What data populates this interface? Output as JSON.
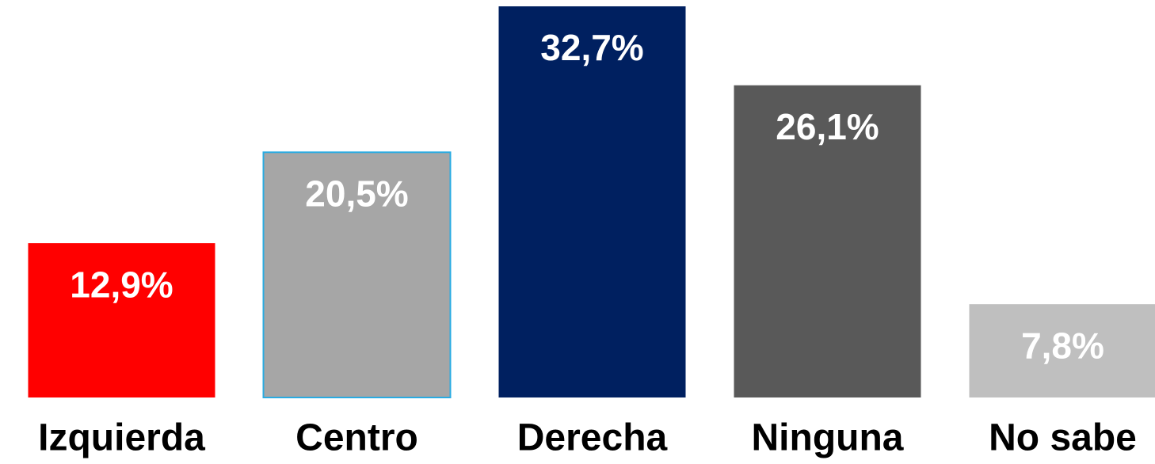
{
  "chart_data": {
    "type": "bar",
    "categories": [
      "Izquierda",
      "Centro",
      "Derecha",
      "Ninguna",
      "No sabe"
    ],
    "values": [
      12.9,
      20.5,
      32.7,
      26.1,
      7.8
    ],
    "value_labels": [
      "12,9%",
      "20,5%",
      "32,7%",
      "26,1%",
      "7,8%"
    ],
    "colors": [
      "#ff0000",
      "#a6a6a6",
      "#002060",
      "#595959",
      "#bfbfbf"
    ],
    "edgecolors": [
      null,
      "#29abe2",
      null,
      null,
      null
    ]
  }
}
